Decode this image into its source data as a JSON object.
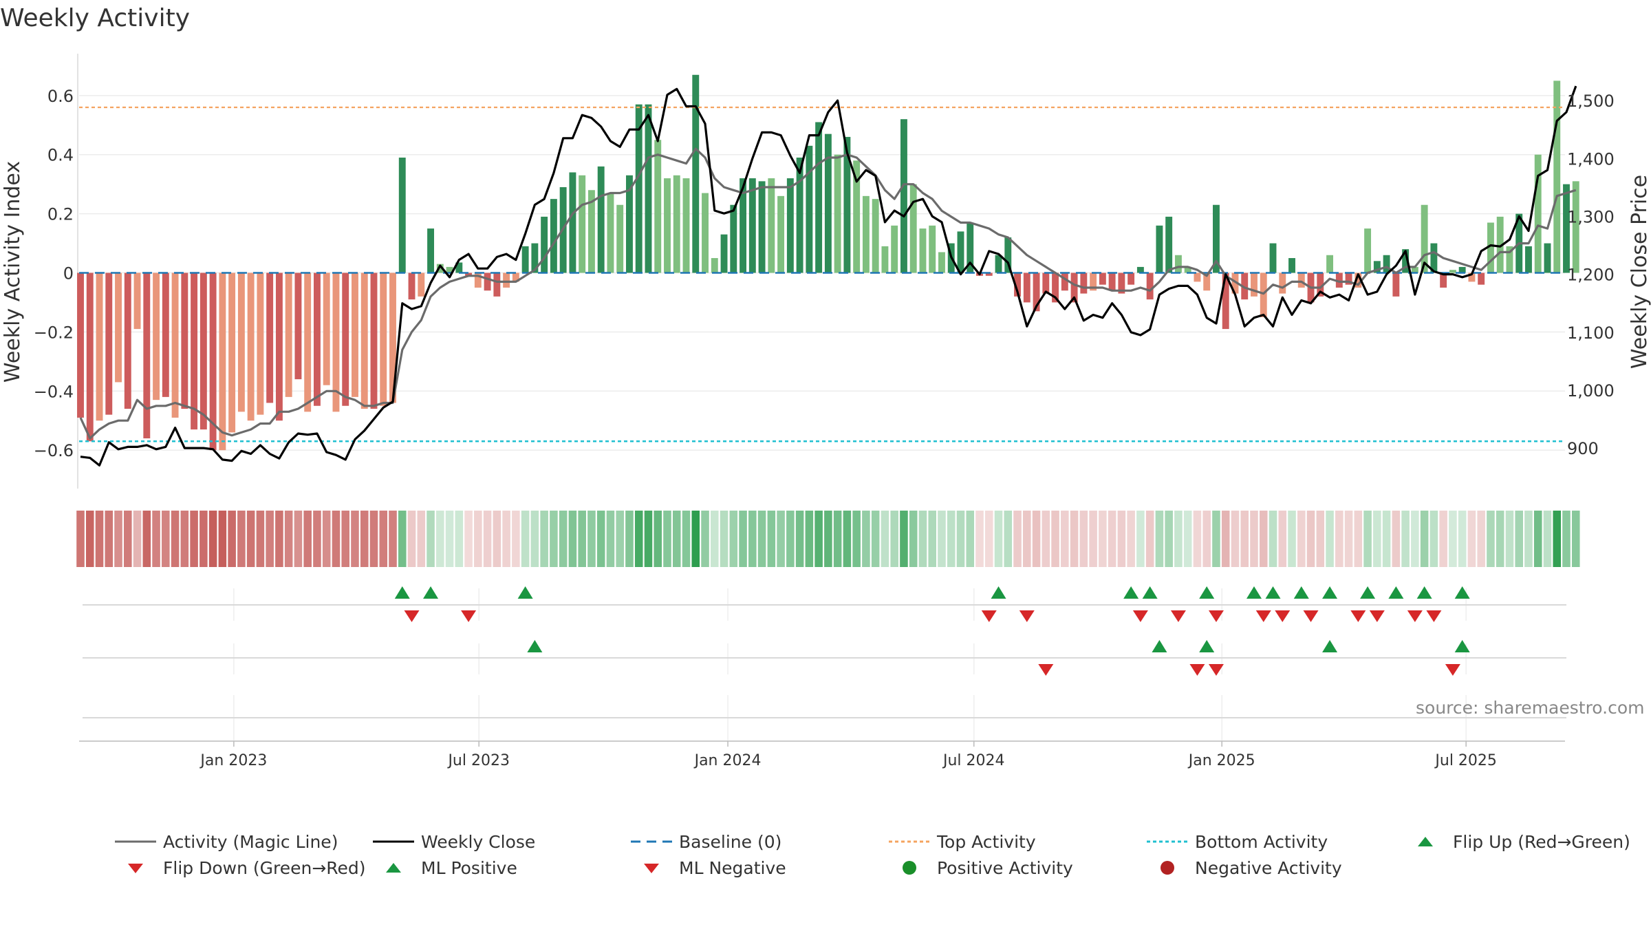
{
  "page_title": "Weekly Activity",
  "source_text": "source: sharemaestro.com",
  "colors": {
    "pos_dark": "#2e8b57",
    "pos_light": "#7fbf7f",
    "neg_dark": "#cd5c5c",
    "neg_light": "#e9967a",
    "magic": "#6b6b6b",
    "close": "#000000",
    "baseline": "#1f77b4",
    "top": "#f4a460",
    "bottom": "#20c0d0",
    "flip_up": "#1a9641",
    "flip_down": "#d62728",
    "pos_dot": "#1a8f2a",
    "neg_dot": "#b22222"
  },
  "chart_data": {
    "type": "bar+line",
    "title": "Weekly Activity",
    "ylabel_left": "Weekly Activity Index",
    "ylabel_right": "Weekly Close Price",
    "ylim_left": [
      -0.73,
      0.73
    ],
    "ylim_right": [
      830,
      1575
    ],
    "yticks_left": [
      -0.6,
      -0.4,
      -0.2,
      0,
      0.2,
      0.4,
      0.6
    ],
    "yticks_left_labels": [
      "−0.6",
      "−0.4",
      "−0.2",
      "0",
      "0.2",
      "0.4",
      "0.6"
    ],
    "yticks_right": [
      900,
      1000,
      1100,
      1200,
      1300,
      1400,
      1500
    ],
    "yticks_right_labels": [
      "900",
      "1,000",
      "1,100",
      "1,200",
      "1,300",
      "1,400",
      "1,500"
    ],
    "xlim_weeks": [
      0,
      157
    ],
    "xticks": [
      {
        "week": 16.2,
        "label": "Jan 2023"
      },
      {
        "week": 42.1,
        "label": "Jul 2023"
      },
      {
        "week": 68.4,
        "label": "Jan 2024"
      },
      {
        "week": 94.4,
        "label": "Jul 2024"
      },
      {
        "week": 120.6,
        "label": "Jan 2025"
      },
      {
        "week": 146.4,
        "label": "Jul 2025"
      }
    ],
    "top_activity": 0.56,
    "bottom_activity": -0.57,
    "activity": [
      -0.49,
      -0.57,
      -0.5,
      -0.48,
      -0.37,
      -0.46,
      -0.19,
      -0.56,
      -0.43,
      -0.42,
      -0.49,
      -0.46,
      -0.53,
      -0.53,
      -0.6,
      -0.6,
      -0.54,
      -0.47,
      -0.5,
      -0.48,
      -0.44,
      -0.5,
      -0.42,
      -0.36,
      -0.47,
      -0.45,
      -0.38,
      -0.47,
      -0.45,
      -0.42,
      -0.46,
      -0.46,
      -0.45,
      -0.44,
      0.39,
      -0.09,
      -0.08,
      0.15,
      0.03,
      0.02,
      0.035,
      -0.01,
      -0.05,
      -0.06,
      -0.08,
      -0.05,
      -0.03,
      0.09,
      0.1,
      0.19,
      0.25,
      0.29,
      0.34,
      0.33,
      0.28,
      0.36,
      0.27,
      0.23,
      0.33,
      0.57,
      0.57,
      0.45,
      0.32,
      0.33,
      0.32,
      0.67,
      0.27,
      0.05,
      0.13,
      0.23,
      0.32,
      0.32,
      0.31,
      0.32,
      0.26,
      0.32,
      0.39,
      0.43,
      0.51,
      0.47,
      0.4,
      0.46,
      0.38,
      0.26,
      0.25,
      0.09,
      0.16,
      0.52,
      0.3,
      0.15,
      0.16,
      0.07,
      0.1,
      0.14,
      0.17,
      -0.01,
      -0.01,
      0.06,
      0.12,
      -0.08,
      -0.1,
      -0.13,
      -0.07,
      -0.1,
      -0.06,
      -0.1,
      -0.07,
      -0.06,
      -0.04,
      -0.06,
      -0.07,
      -0.04,
      0.02,
      -0.09,
      0.16,
      0.19,
      0.06,
      0.02,
      -0.03,
      -0.06,
      0.23,
      -0.19,
      -0.07,
      -0.09,
      -0.08,
      -0.15,
      0.1,
      -0.07,
      0.05,
      -0.05,
      -0.1,
      -0.08,
      0.06,
      -0.05,
      -0.04,
      -0.05,
      0.15,
      0.04,
      0.06,
      -0.08,
      0.08,
      0.02,
      0.23,
      0.1,
      -0.05,
      0.01,
      0.02,
      -0.03,
      -0.04,
      0.17,
      0.19,
      0.09,
      0.2,
      0.09,
      0.4,
      0.1,
      0.65,
      0.3,
      0.31
    ],
    "bar_shade": [
      "d",
      "d",
      "l",
      "d",
      "l",
      "d",
      "l",
      "d",
      "l",
      "d",
      "l",
      "d",
      "d",
      "d",
      "d",
      "l",
      "l",
      "l",
      "l",
      "l",
      "d",
      "d",
      "l",
      "d",
      "l",
      "d",
      "l",
      "l",
      "d",
      "l",
      "l",
      "d",
      "l",
      "l",
      "d",
      "d",
      "l",
      "d",
      "l",
      "l",
      "d",
      "d",
      "l",
      "d",
      "d",
      "l",
      "l",
      "d",
      "d",
      "d",
      "d",
      "d",
      "d",
      "l",
      "l",
      "d",
      "l",
      "l",
      "d",
      "d",
      "d",
      "l",
      "l",
      "l",
      "l",
      "d",
      "l",
      "l",
      "d",
      "d",
      "d",
      "d",
      "d",
      "l",
      "l",
      "d",
      "d",
      "d",
      "d",
      "d",
      "l",
      "d",
      "l",
      "l",
      "l",
      "l",
      "l",
      "d",
      "l",
      "l",
      "l",
      "l",
      "d",
      "d",
      "d",
      "d",
      "d",
      "d",
      "d",
      "d",
      "d",
      "d",
      "d",
      "d",
      "d",
      "d",
      "d",
      "l",
      "d",
      "d",
      "d",
      "d",
      "d",
      "d",
      "d",
      "d",
      "l",
      "l",
      "l",
      "l",
      "d",
      "d",
      "l",
      "d",
      "l",
      "l",
      "d",
      "l",
      "d",
      "l",
      "d",
      "d",
      "l",
      "d",
      "d",
      "l",
      "l",
      "d",
      "d",
      "d",
      "d",
      "l",
      "l",
      "d",
      "d",
      "l",
      "d",
      "l",
      "d",
      "l",
      "l",
      "l",
      "d",
      "d",
      "l",
      "d",
      "l",
      "d",
      "l",
      "d",
      "d",
      "l",
      "d",
      "d",
      "d",
      "l",
      "d",
      "l",
      "d"
    ],
    "magic_line": [
      -0.49,
      -0.56,
      -0.53,
      -0.51,
      -0.5,
      -0.5,
      -0.43,
      -0.46,
      -0.45,
      -0.45,
      -0.44,
      -0.45,
      -0.46,
      -0.48,
      -0.51,
      -0.54,
      -0.55,
      -0.54,
      -0.53,
      -0.51,
      -0.51,
      -0.47,
      -0.47,
      -0.46,
      -0.44,
      -0.42,
      -0.4,
      -0.4,
      -0.42,
      -0.43,
      -0.45,
      -0.45,
      -0.44,
      -0.44,
      -0.26,
      -0.2,
      -0.16,
      -0.08,
      -0.05,
      -0.03,
      -0.02,
      -0.01,
      -0.01,
      -0.02,
      -0.03,
      -0.03,
      -0.03,
      -0.01,
      0.01,
      0.05,
      0.1,
      0.15,
      0.2,
      0.23,
      0.24,
      0.26,
      0.27,
      0.27,
      0.28,
      0.33,
      0.39,
      0.4,
      0.39,
      0.38,
      0.37,
      0.42,
      0.39,
      0.32,
      0.29,
      0.28,
      0.27,
      0.28,
      0.29,
      0.29,
      0.29,
      0.29,
      0.31,
      0.34,
      0.37,
      0.39,
      0.39,
      0.4,
      0.39,
      0.36,
      0.33,
      0.28,
      0.25,
      0.3,
      0.3,
      0.27,
      0.25,
      0.21,
      0.19,
      0.17,
      0.17,
      0.16,
      0.15,
      0.13,
      0.12,
      0.09,
      0.06,
      0.04,
      0.02,
      0.0,
      -0.02,
      -0.04,
      -0.05,
      -0.05,
      -0.05,
      -0.06,
      -0.06,
      -0.06,
      -0.05,
      -0.06,
      -0.03,
      0.01,
      0.02,
      0.02,
      0.01,
      -0.01,
      0.04,
      -0.01,
      -0.03,
      -0.05,
      -0.06,
      -0.07,
      -0.04,
      -0.05,
      -0.03,
      -0.03,
      -0.05,
      -0.05,
      -0.02,
      -0.03,
      -0.03,
      -0.04,
      0.0,
      0.01,
      0.02,
      0.0,
      0.02,
      0.02,
      0.06,
      0.07,
      0.05,
      0.04,
      0.03,
      0.02,
      0.01,
      0.04,
      0.07,
      0.07,
      0.1,
      0.1,
      0.16,
      0.15,
      0.26,
      0.27,
      0.28
    ]
  },
  "close_prices": [
    885,
    883,
    870,
    910,
    898,
    902,
    902,
    905,
    898,
    902,
    935,
    900,
    900,
    900,
    898,
    880,
    878,
    895,
    890,
    905,
    890,
    882,
    910,
    925,
    923,
    925,
    893,
    888,
    880,
    915,
    930,
    950,
    970,
    980,
    1150,
    1140,
    1145,
    1185,
    1215,
    1195,
    1225,
    1235,
    1210,
    1210,
    1230,
    1235,
    1225,
    1270,
    1320,
    1330,
    1375,
    1435,
    1435,
    1475,
    1470,
    1455,
    1430,
    1420,
    1450,
    1450,
    1475,
    1430,
    1510,
    1520,
    1490,
    1490,
    1460,
    1310,
    1305,
    1310,
    1350,
    1400,
    1445,
    1445,
    1440,
    1405,
    1375,
    1440,
    1440,
    1480,
    1500,
    1410,
    1360,
    1380,
    1370,
    1290,
    1310,
    1300,
    1325,
    1330,
    1300,
    1290,
    1230,
    1200,
    1220,
    1200,
    1240,
    1235,
    1220,
    1170,
    1110,
    1145,
    1170,
    1160,
    1140,
    1160,
    1120,
    1130,
    1125,
    1150,
    1130,
    1100,
    1095,
    1105,
    1165,
    1175,
    1180,
    1180,
    1165,
    1125,
    1115,
    1200,
    1165,
    1110,
    1125,
    1130,
    1110,
    1160,
    1130,
    1155,
    1150,
    1170,
    1160,
    1165,
    1155,
    1200,
    1165,
    1170,
    1200,
    1215,
    1240,
    1165,
    1220,
    1205,
    1200,
    1200,
    1195,
    1200,
    1240,
    1250,
    1248,
    1260,
    1300,
    1275,
    1370,
    1380,
    1465,
    1480,
    1525
  ],
  "signals": {
    "flip_up": [
      34,
      37,
      47,
      97,
      111,
      113,
      119,
      124,
      126,
      129,
      132,
      136,
      139,
      142,
      146
    ],
    "flip_down": [
      35,
      41,
      96,
      100,
      112,
      116,
      120,
      125,
      127,
      130,
      135,
      137,
      141,
      143
    ],
    "ml_positive": [
      48,
      114,
      119,
      132,
      146
    ],
    "ml_negative": [
      102,
      118,
      120,
      145
    ]
  },
  "legend": [
    {
      "label": "Activity (Magic Line)",
      "kind": "line",
      "color": "#6b6b6b",
      "dash": ""
    },
    {
      "label": "Weekly Close",
      "kind": "line",
      "color": "#000000",
      "dash": ""
    },
    {
      "label": "Baseline (0)",
      "kind": "line",
      "color": "#1f77b4",
      "dash": "14,9"
    },
    {
      "label": "Top Activity",
      "kind": "line",
      "color": "#f4a460",
      "dash": "5,4"
    },
    {
      "label": "Bottom Activity",
      "kind": "line",
      "color": "#20c0d0",
      "dash": "5,4"
    },
    {
      "label": "Flip Up (Red→Green)",
      "kind": "tri-up",
      "color": "#1a9641"
    },
    {
      "label": "Flip Down (Green→Red)",
      "kind": "tri-down",
      "color": "#d62728"
    },
    {
      "label": "ML Positive",
      "kind": "tri-up",
      "color": "#1a9641"
    },
    {
      "label": "ML Negative",
      "kind": "tri-down",
      "color": "#d62728"
    },
    {
      "label": "Positive Activity",
      "kind": "dot",
      "color": "#1a8f2a"
    },
    {
      "label": "Negative Activity",
      "kind": "dot",
      "color": "#b22222"
    }
  ]
}
